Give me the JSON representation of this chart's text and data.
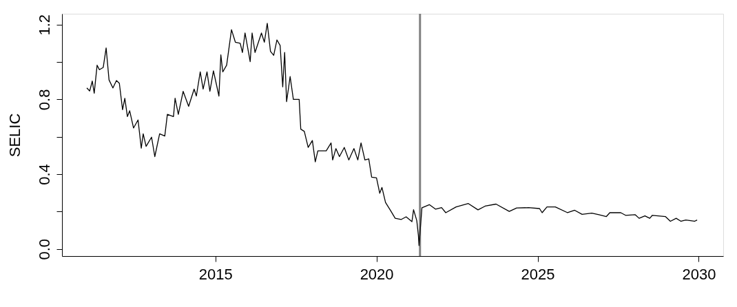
{
  "chart_data": {
    "type": "line",
    "ylabel": "SELIC",
    "x": [
      2011.01,
      2011.1,
      2011.18,
      2011.24,
      2011.33,
      2011.4,
      2011.52,
      2011.61,
      2011.7,
      2011.82,
      2011.93,
      2012.02,
      2012.12,
      2012.19,
      2012.27,
      2012.34,
      2012.46,
      2012.6,
      2012.7,
      2012.76,
      2012.85,
      2013.02,
      2013.12,
      2013.27,
      2013.43,
      2013.51,
      2013.7,
      2013.75,
      2013.85,
      2014.0,
      2014.17,
      2014.34,
      2014.41,
      2014.53,
      2014.62,
      2014.74,
      2014.83,
      2014.94,
      2015.11,
      2015.17,
      2015.23,
      2015.35,
      2015.5,
      2015.62,
      2015.77,
      2015.84,
      2015.92,
      2016.08,
      2016.14,
      2016.23,
      2016.43,
      2016.52,
      2016.61,
      2016.71,
      2016.81,
      2016.91,
      2017.01,
      2017.09,
      2017.15,
      2017.21,
      2017.32,
      2017.42,
      2017.6,
      2017.65,
      2017.76,
      2017.88,
      2018.01,
      2018.1,
      2018.18,
      2018.44,
      2018.59,
      2018.64,
      2018.74,
      2018.85,
      2019.0,
      2019.14,
      2019.3,
      2019.42,
      2019.52,
      2019.64,
      2019.76,
      2019.85,
      2020.0,
      2020.1,
      2020.17,
      2020.28,
      2020.43,
      2020.58,
      2020.77,
      2020.92,
      2021.1,
      2021.15,
      2021.25,
      2021.3,
      2021.32,
      2021.41,
      2021.64,
      2021.83,
      2022.02,
      2022.15,
      2022.47,
      2022.85,
      2023.15,
      2023.37,
      2023.71,
      2024.12,
      2024.35,
      2024.72,
      2025.06,
      2025.14,
      2025.29,
      2025.55,
      2025.93,
      2026.15,
      2026.38,
      2026.68,
      2026.9,
      2027.13,
      2027.24,
      2027.58,
      2027.73,
      2028.03,
      2028.15,
      2028.33,
      2028.48,
      2028.56,
      2028.97,
      2029.12,
      2029.3,
      2029.45,
      2029.6,
      2029.87,
      2029.95
    ],
    "series": [
      {
        "color": "#000000",
        "values": [
          0.861,
          0.845,
          0.898,
          0.833,
          0.983,
          0.959,
          0.971,
          1.075,
          0.904,
          0.861,
          0.901,
          0.886,
          0.745,
          0.806,
          0.708,
          0.739,
          0.647,
          0.69,
          0.539,
          0.616,
          0.549,
          0.598,
          0.494,
          0.616,
          0.604,
          0.72,
          0.708,
          0.806,
          0.72,
          0.843,
          0.763,
          0.855,
          0.818,
          0.947,
          0.855,
          0.947,
          0.843,
          0.953,
          0.818,
          1.038,
          0.947,
          0.983,
          1.173,
          1.106,
          1.1,
          1.051,
          1.155,
          1.002,
          1.155,
          1.051,
          1.155,
          1.106,
          1.207,
          1.057,
          1.036,
          1.118,
          1.088,
          0.867,
          1.051,
          0.788,
          0.922,
          0.8,
          0.8,
          0.641,
          0.629,
          0.543,
          0.58,
          0.466,
          0.525,
          0.525,
          0.567,
          0.476,
          0.537,
          0.494,
          0.543,
          0.476,
          0.537,
          0.476,
          0.567,
          0.476,
          0.482,
          0.384,
          0.38,
          0.298,
          0.329,
          0.249,
          0.207,
          0.164,
          0.158,
          0.172,
          0.146,
          0.21,
          0.152,
          0.073,
          0.018,
          0.22,
          0.237,
          0.213,
          0.221,
          0.194,
          0.225,
          0.243,
          0.209,
          0.229,
          0.24,
          0.201,
          0.219,
          0.221,
          0.216,
          0.194,
          0.225,
          0.225,
          0.194,
          0.207,
          0.185,
          0.192,
          0.183,
          0.173,
          0.194,
          0.194,
          0.18,
          0.183,
          0.164,
          0.177,
          0.164,
          0.18,
          0.173,
          0.148,
          0.164,
          0.148,
          0.155,
          0.148,
          0.155
        ]
      }
    ],
    "xlim": [
      2010.24,
      2030.76
    ],
    "xticks": [
      2015,
      2020,
      2025,
      2030
    ],
    "ylim": [
      -0.038,
      1.258
    ],
    "yticks": [
      {
        "value": 0,
        "label": "0.0"
      },
      {
        "value": 0.2,
        "label": null
      },
      {
        "value": 0.4,
        "label": "0.4"
      },
      {
        "value": 0.6,
        "label": null
      },
      {
        "value": 0.8,
        "label": "0.8"
      },
      {
        "value": 1.0,
        "label": null
      },
      {
        "value": 1.2,
        "label": "1.2"
      }
    ],
    "ref_lines": [
      {
        "axis": "x",
        "value": 2021.35,
        "color": "#808080"
      }
    ],
    "grid": false,
    "marker": "none",
    "line_style": "solid"
  }
}
